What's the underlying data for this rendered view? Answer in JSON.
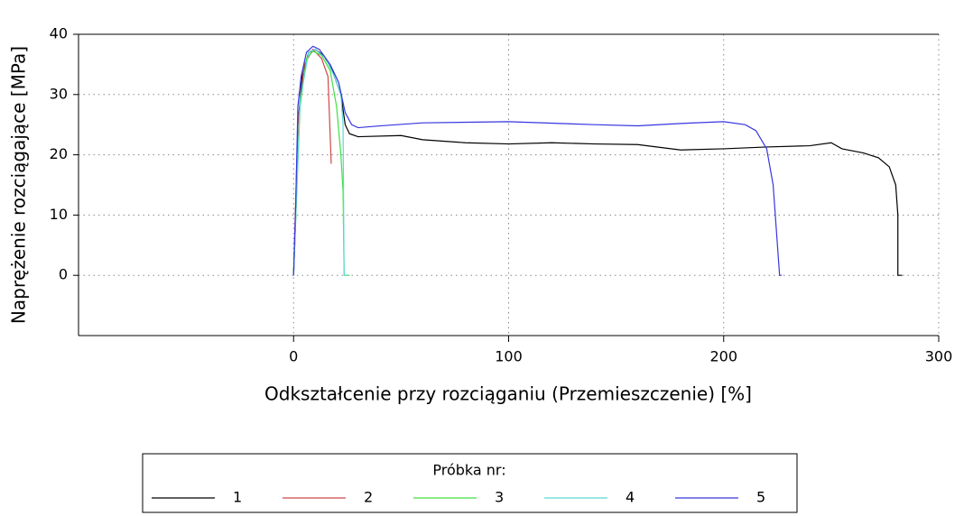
{
  "chart_data": {
    "type": "line",
    "xlabel": "Odkształcenie przy rozciąganiu (Przemieszczenie) [%]",
    "ylabel": "Naprężenie rozciągające [MPa]",
    "legend_title": "Próbka nr:",
    "xlim": [
      -100,
      300
    ],
    "ylim": [
      -10,
      40
    ],
    "xticks": [
      0,
      100,
      200,
      300
    ],
    "yticks": [
      0,
      10,
      20,
      30,
      40
    ],
    "grid": true,
    "legend": "bottom",
    "series": [
      {
        "name": "1",
        "color": "#000000",
        "x": [
          0,
          1,
          2,
          4,
          7,
          10,
          14,
          18,
          22,
          24,
          26,
          30,
          50,
          60,
          80,
          100,
          120,
          140,
          160,
          180,
          200,
          220,
          240,
          250,
          255,
          265,
          272,
          277,
          280,
          281,
          281,
          283
        ],
        "values": [
          0,
          10,
          25,
          33,
          37,
          37.5,
          36.5,
          34,
          30,
          25,
          23.5,
          23,
          23.2,
          22.5,
          22,
          21.8,
          22,
          21.8,
          21.7,
          20.8,
          21,
          21.3,
          21.5,
          22,
          21,
          20.3,
          19.5,
          18,
          15,
          10,
          0,
          0
        ]
      },
      {
        "name": "2",
        "color": "#d04848",
        "x": [
          0,
          2,
          5,
          9,
          13,
          16,
          17.5
        ],
        "values": [
          0,
          25,
          35,
          37.5,
          36,
          33,
          18.5
        ]
      },
      {
        "name": "3",
        "color": "#3ee03e",
        "x": [
          0,
          3,
          6,
          9,
          13,
          17,
          20,
          22,
          23,
          23.5,
          26
        ],
        "values": [
          0,
          28,
          36,
          37.2,
          36.5,
          34,
          28,
          20,
          14,
          0,
          0
        ]
      },
      {
        "name": "4",
        "color": "#5cd8d8",
        "x": [
          0,
          3,
          7,
          10,
          15,
          19,
          22,
          23,
          23.5,
          25
        ],
        "values": [
          0,
          29,
          37,
          37.5,
          36,
          33,
          30,
          25,
          0,
          0
        ]
      },
      {
        "name": "5",
        "color": "#3636e0",
        "x": [
          0,
          1,
          2,
          3.5,
          6,
          9,
          12,
          17,
          21,
          24,
          27,
          30,
          40,
          60,
          100,
          140,
          160,
          180,
          200,
          210,
          215,
          220,
          223,
          225,
          226,
          227
        ],
        "values": [
          0,
          12,
          28,
          33,
          37,
          38,
          37.5,
          35,
          32,
          27,
          25,
          24.5,
          24.8,
          25.3,
          25.5,
          25,
          24.8,
          25.2,
          25.5,
          25,
          24,
          21,
          15,
          5,
          0,
          0
        ]
      }
    ]
  }
}
